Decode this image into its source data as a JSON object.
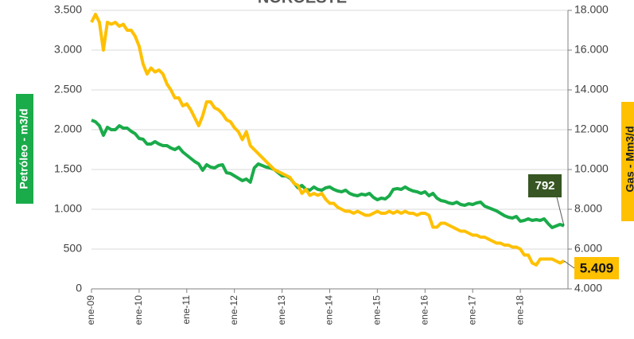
{
  "chart_data": {
    "type": "line",
    "title": "NOROESTE",
    "y_label": "Petróleo - m3/d",
    "y2_label": "Gas - Mm3/d",
    "categories": [
      "ene-09",
      null,
      null,
      null,
      null,
      null,
      null,
      null,
      null,
      null,
      null,
      null,
      "ene-10",
      null,
      null,
      null,
      null,
      null,
      null,
      null,
      null,
      null,
      null,
      null,
      "ene-11",
      null,
      null,
      null,
      null,
      null,
      null,
      null,
      null,
      null,
      null,
      null,
      "ene-12",
      null,
      null,
      null,
      null,
      null,
      null,
      null,
      null,
      null,
      null,
      null,
      "ene-13",
      null,
      null,
      null,
      null,
      null,
      null,
      null,
      null,
      null,
      null,
      null,
      "ene-14",
      null,
      null,
      null,
      null,
      null,
      null,
      null,
      null,
      null,
      null,
      null,
      "ene-15",
      null,
      null,
      null,
      null,
      null,
      null,
      null,
      null,
      null,
      null,
      null,
      "ene-16",
      null,
      null,
      null,
      null,
      null,
      null,
      null,
      null,
      null,
      null,
      null,
      "ene-17",
      null,
      null,
      null,
      null,
      null,
      null,
      null,
      null,
      null,
      null,
      null,
      "ene-18",
      null,
      null,
      null,
      null,
      null,
      null,
      null,
      null,
      null,
      null,
      null
    ],
    "ylim": [
      0,
      3500
    ],
    "yticks": [
      0,
      500,
      {
        "value": 1000,
        "label": "1.000"
      },
      {
        "value": 1500,
        "label": "1.500"
      },
      {
        "value": 2000,
        "label": "2.000"
      },
      {
        "value": 2500,
        "label": "2.500"
      },
      {
        "value": 3000,
        "label": "3.000"
      },
      {
        "value": 3500,
        "label": "3.500"
      }
    ],
    "y2lim": [
      4000,
      18000
    ],
    "y2ticks": [
      {
        "value": 4000,
        "label": "4.000"
      },
      {
        "value": 6000,
        "label": "6.000"
      },
      {
        "value": 8000,
        "label": "8.000"
      },
      {
        "value": 10000,
        "label": "10.000"
      },
      {
        "value": 12000,
        "label": "12.000"
      },
      {
        "value": 14000,
        "label": "14.000"
      },
      {
        "value": 16000,
        "label": "16.000"
      },
      {
        "value": 18000,
        "label": "18.000"
      }
    ],
    "grid": true,
    "series": [
      {
        "name": "Petróleo",
        "color": "#1aab4a",
        "axis": "y",
        "values": [
          2120,
          2100,
          2050,
          1930,
          2030,
          2000,
          2000,
          2050,
          2020,
          2020,
          1980,
          1950,
          1890,
          1880,
          1820,
          1820,
          1850,
          1820,
          1800,
          1800,
          1770,
          1750,
          1780,
          1720,
          1680,
          1640,
          1600,
          1570,
          1490,
          1560,
          1530,
          1520,
          1550,
          1560,
          1460,
          1450,
          1420,
          1390,
          1360,
          1380,
          1340,
          1520,
          1570,
          1550,
          1530,
          1520,
          1500,
          1460,
          1420,
          1420,
          1390,
          1330,
          1270,
          1300,
          1250,
          1240,
          1280,
          1250,
          1240,
          1270,
          1280,
          1250,
          1230,
          1220,
          1240,
          1200,
          1180,
          1170,
          1190,
          1180,
          1200,
          1150,
          1120,
          1140,
          1130,
          1170,
          1250,
          1260,
          1250,
          1280,
          1250,
          1230,
          1220,
          1200,
          1220,
          1170,
          1200,
          1140,
          1110,
          1100,
          1080,
          1070,
          1090,
          1060,
          1050,
          1070,
          1060,
          1080,
          1090,
          1040,
          1020,
          1000,
          980,
          950,
          920,
          900,
          890,
          910,
          850,
          860,
          880,
          860,
          870,
          860,
          880,
          820,
          770,
          790,
          810,
          792
        ]
      },
      {
        "name": "Gas",
        "color": "#ffc000",
        "axis": "y2",
        "values": [
          17400,
          17800,
          17400,
          16000,
          17400,
          17300,
          17400,
          17200,
          17300,
          17000,
          17000,
          16700,
          16200,
          15300,
          14800,
          15100,
          14900,
          15000,
          14800,
          14300,
          14000,
          13600,
          13600,
          13200,
          13300,
          13000,
          12600,
          12200,
          12700,
          13400,
          13400,
          13100,
          13000,
          12800,
          12500,
          12400,
          12100,
          11900,
          11500,
          11900,
          11200,
          11000,
          10800,
          10600,
          10400,
          10200,
          10000,
          9900,
          9800,
          9700,
          9600,
          9300,
          9200,
          8800,
          9000,
          8700,
          8800,
          8700,
          8800,
          8500,
          8300,
          8300,
          8100,
          8000,
          7900,
          7900,
          7800,
          7900,
          7800,
          7700,
          7700,
          7800,
          7900,
          7800,
          7800,
          7900,
          7800,
          7900,
          7800,
          7900,
          7800,
          7800,
          7700,
          7800,
          7800,
          7700,
          7100,
          7100,
          7300,
          7300,
          7200,
          7100,
          7000,
          6900,
          6900,
          6800,
          6700,
          6700,
          6600,
          6600,
          6500,
          6400,
          6300,
          6300,
          6200,
          6200,
          6100,
          6100,
          6000,
          5700,
          5700,
          5300,
          5200,
          5500,
          5500,
          5500,
          5500,
          5400,
          5300,
          5409
        ],
        "value_labels": [
          null,
          null,
          null,
          null,
          null,
          null,
          null,
          null,
          null,
          null,
          null,
          null,
          null,
          null,
          null,
          null,
          null,
          null,
          null,
          null,
          null,
          null,
          null,
          null,
          null,
          null,
          null,
          null,
          null,
          null,
          null,
          null,
          null,
          null,
          null,
          null,
          null,
          null,
          null,
          null,
          null,
          null,
          null,
          null,
          null,
          null,
          null,
          null,
          null,
          null,
          null,
          null,
          null,
          null,
          null,
          null,
          null,
          null,
          null,
          null,
          null,
          null,
          null,
          null,
          null,
          null,
          null,
          null,
          null,
          null,
          null,
          null,
          null,
          null,
          null,
          null,
          null,
          null,
          null,
          null,
          null,
          null,
          null,
          null,
          null,
          null,
          null,
          null,
          null,
          null,
          null,
          null,
          null,
          null,
          null,
          null,
          null,
          null,
          null,
          null,
          null,
          null,
          null,
          null,
          null,
          null,
          null,
          null,
          null,
          null,
          null,
          null,
          null,
          null,
          null,
          null,
          null,
          null,
          null,
          "5.409"
        ]
      }
    ]
  }
}
